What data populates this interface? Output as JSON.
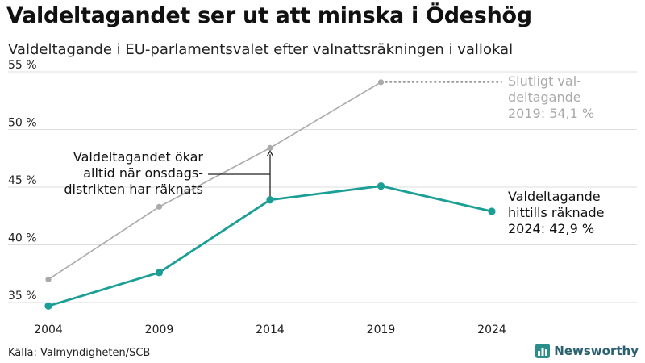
{
  "title": "Valdeltagandet ser ut att minska i Ödeshög",
  "subtitle": "Valdeltagande i EU-parlamentsvalet efter valnattsräkningen i vallokal",
  "source": "Källa: Valmyndigheten/SCB",
  "brand": "Newsworthy",
  "chart_data": {
    "type": "line",
    "x": [
      2004,
      2009,
      2014,
      2019,
      2024
    ],
    "ylim": [
      34,
      55
    ],
    "yticks": [
      35,
      40,
      45,
      50,
      55
    ],
    "ytick_labels": [
      "35 %",
      "40 %",
      "45 %",
      "50 %",
      "55 %"
    ],
    "xtick_labels": [
      "2004",
      "2009",
      "2014",
      "2019",
      "2024"
    ],
    "grid": true,
    "series": [
      {
        "key": "final",
        "values": [
          37.0,
          43.3,
          48.4,
          54.1,
          null
        ],
        "color": "#aaaaaa"
      },
      {
        "key": "night",
        "values": [
          34.7,
          37.6,
          43.9,
          45.1,
          42.9
        ],
        "color": "#1a9e96"
      }
    ],
    "annotations": {
      "final_label": [
        "Slutligt val-",
        "deltagande",
        "2019: 54,1 %"
      ],
      "night_label": [
        "Valdeltagande",
        "hittills räknade",
        "2024: 42,9 %"
      ],
      "note": [
        "Valdeltagandet ökar",
        "alltid när onsdags-",
        "distrikten har räknats"
      ]
    }
  }
}
